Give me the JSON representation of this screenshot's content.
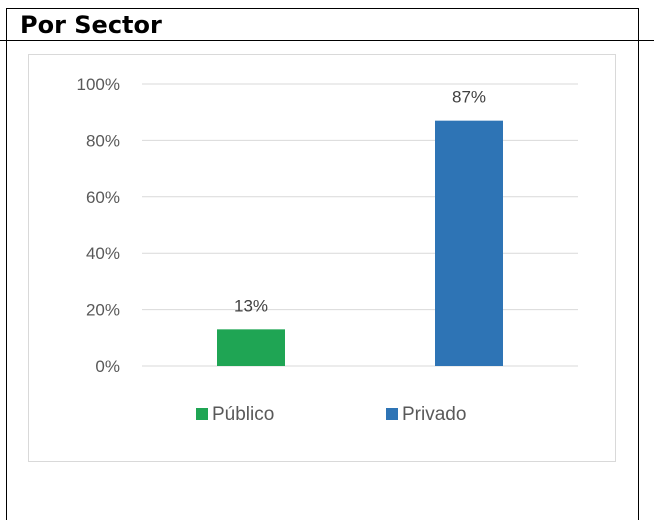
{
  "header": {
    "title": "Por Sector"
  },
  "chart_data": {
    "type": "bar",
    "categories": [
      "Público",
      "Privado"
    ],
    "values": [
      13,
      87
    ],
    "value_labels": [
      "13%",
      "87%"
    ],
    "colors": [
      "#1fa554",
      "#2e74b5"
    ],
    "ylim": [
      0,
      100
    ],
    "yticks": [
      0,
      20,
      40,
      60,
      80,
      100
    ],
    "ytick_labels": [
      "0%",
      "20%",
      "40%",
      "60%",
      "80%",
      "100%"
    ],
    "grid": true,
    "legend": {
      "position": "bottom",
      "entries": [
        "Público",
        "Privado"
      ]
    },
    "title": "",
    "xlabel": "",
    "ylabel": ""
  }
}
